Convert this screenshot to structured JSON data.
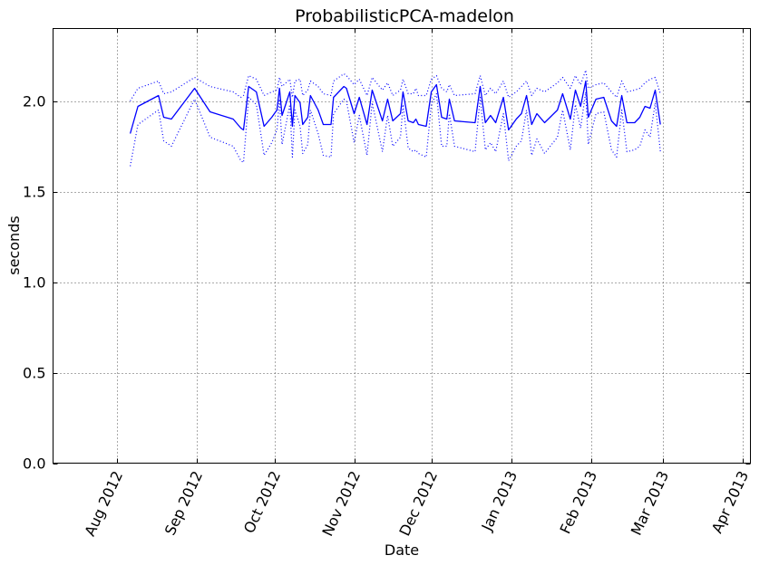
{
  "chart_data": {
    "type": "line",
    "title": "ProbabilisticPCA-madelon",
    "xlabel": "Date",
    "ylabel": "seconds",
    "ylim": [
      0.0,
      2.4
    ],
    "yticks": [
      "0.0",
      "0.5",
      "1.0",
      "1.5",
      "2.0"
    ],
    "xlim": [
      "2012-07-07",
      "2013-04-04"
    ],
    "xticks": [
      "Aug 2012",
      "Sep 2012",
      "Oct 2012",
      "Nov 2012",
      "Dec 2012",
      "Jan 2013",
      "Feb 2013",
      "Mar 2013",
      "Apr 2013"
    ],
    "xtick_dates": [
      "2012-08-01",
      "2012-09-01",
      "2012-10-01",
      "2012-11-01",
      "2012-12-01",
      "2013-01-01",
      "2013-02-01",
      "2013-03-01",
      "2013-04-01"
    ],
    "grid": true,
    "legend": "none",
    "series": [
      {
        "style": "solid",
        "color": "#0000ff",
        "points": [
          [
            "2012-08-06",
            1.82
          ],
          [
            "2012-08-09",
            1.97
          ],
          [
            "2012-08-17",
            2.03
          ],
          [
            "2012-08-19",
            1.91
          ],
          [
            "2012-08-22",
            1.9
          ],
          [
            "2012-08-31",
            2.07
          ],
          [
            "2012-09-06",
            1.94
          ],
          [
            "2012-09-15",
            1.9
          ],
          [
            "2012-09-18",
            1.85
          ],
          [
            "2012-09-19",
            1.84
          ],
          [
            "2012-09-21",
            2.08
          ],
          [
            "2012-09-24",
            2.05
          ],
          [
            "2012-09-27",
            1.86
          ],
          [
            "2012-09-30",
            1.91
          ],
          [
            "2012-10-02",
            1.95
          ],
          [
            "2012-10-03",
            2.07
          ],
          [
            "2012-10-04",
            1.92
          ],
          [
            "2012-10-07",
            2.05
          ],
          [
            "2012-10-08",
            1.86
          ],
          [
            "2012-10-09",
            2.03
          ],
          [
            "2012-10-11",
            1.99
          ],
          [
            "2012-10-12",
            1.87
          ],
          [
            "2012-10-14",
            1.91
          ],
          [
            "2012-10-15",
            2.03
          ],
          [
            "2012-10-18",
            1.95
          ],
          [
            "2012-10-20",
            1.87
          ],
          [
            "2012-10-23",
            1.87
          ],
          [
            "2012-10-24",
            2.02
          ],
          [
            "2012-10-28",
            2.08
          ],
          [
            "2012-10-29",
            2.07
          ],
          [
            "2012-11-01",
            1.93
          ],
          [
            "2012-11-03",
            2.02
          ],
          [
            "2012-11-06",
            1.87
          ],
          [
            "2012-11-08",
            2.06
          ],
          [
            "2012-11-12",
            1.89
          ],
          [
            "2012-11-14",
            2.01
          ],
          [
            "2012-11-16",
            1.89
          ],
          [
            "2012-11-19",
            1.93
          ],
          [
            "2012-11-20",
            2.05
          ],
          [
            "2012-11-22",
            1.89
          ],
          [
            "2012-11-24",
            1.88
          ],
          [
            "2012-11-25",
            1.9
          ],
          [
            "2012-11-26",
            1.87
          ],
          [
            "2012-11-29",
            1.86
          ],
          [
            "2012-12-01",
            2.05
          ],
          [
            "2012-12-03",
            2.09
          ],
          [
            "2012-12-05",
            1.91
          ],
          [
            "2012-12-07",
            1.9
          ],
          [
            "2012-12-08",
            2.01
          ],
          [
            "2012-12-10",
            1.89
          ],
          [
            "2012-12-18",
            1.88
          ],
          [
            "2012-12-20",
            2.08
          ],
          [
            "2012-12-22",
            1.88
          ],
          [
            "2012-12-24",
            1.92
          ],
          [
            "2012-12-26",
            1.88
          ],
          [
            "2012-12-29",
            2.02
          ],
          [
            "2012-12-31",
            1.84
          ],
          [
            "2013-01-03",
            1.9
          ],
          [
            "2013-01-05",
            1.93
          ],
          [
            "2013-01-07",
            2.03
          ],
          [
            "2013-01-09",
            1.87
          ],
          [
            "2013-01-11",
            1.93
          ],
          [
            "2013-01-14",
            1.88
          ],
          [
            "2013-01-19",
            1.95
          ],
          [
            "2013-01-21",
            2.04
          ],
          [
            "2013-01-24",
            1.9
          ],
          [
            "2013-01-26",
            2.06
          ],
          [
            "2013-01-28",
            1.97
          ],
          [
            "2013-01-30",
            2.11
          ],
          [
            "2013-01-31",
            1.91
          ],
          [
            "2013-02-03",
            2.01
          ],
          [
            "2013-02-06",
            2.02
          ],
          [
            "2013-02-09",
            1.89
          ],
          [
            "2013-02-11",
            1.86
          ],
          [
            "2013-02-13",
            2.03
          ],
          [
            "2013-02-15",
            1.88
          ],
          [
            "2013-02-18",
            1.88
          ],
          [
            "2013-02-20",
            1.91
          ],
          [
            "2013-02-22",
            1.97
          ],
          [
            "2013-02-24",
            1.96
          ],
          [
            "2013-02-26",
            2.06
          ],
          [
            "2013-02-28",
            1.87
          ]
        ]
      },
      {
        "style": "dotted",
        "color": "#0000ff",
        "points": [
          [
            "2012-08-06",
            2.0
          ],
          [
            "2012-08-09",
            2.07
          ],
          [
            "2012-08-17",
            2.11
          ],
          [
            "2012-08-19",
            2.04
          ],
          [
            "2012-08-22",
            2.05
          ],
          [
            "2012-08-31",
            2.13
          ],
          [
            "2012-09-06",
            2.08
          ],
          [
            "2012-09-15",
            2.05
          ],
          [
            "2012-09-18",
            2.02
          ],
          [
            "2012-09-19",
            2.03
          ],
          [
            "2012-09-21",
            2.14
          ],
          [
            "2012-09-24",
            2.12
          ],
          [
            "2012-09-27",
            2.03
          ],
          [
            "2012-09-30",
            2.05
          ],
          [
            "2012-10-02",
            2.06
          ],
          [
            "2012-10-03",
            2.13
          ],
          [
            "2012-10-04",
            2.08
          ],
          [
            "2012-10-07",
            2.12
          ],
          [
            "2012-10-08",
            2.02
          ],
          [
            "2012-10-09",
            2.11
          ],
          [
            "2012-10-11",
            2.12
          ],
          [
            "2012-10-12",
            2.03
          ],
          [
            "2012-10-14",
            2.06
          ],
          [
            "2012-10-15",
            2.11
          ],
          [
            "2012-10-18",
            2.08
          ],
          [
            "2012-10-20",
            2.04
          ],
          [
            "2012-10-23",
            2.03
          ],
          [
            "2012-10-24",
            2.11
          ],
          [
            "2012-10-28",
            2.15
          ],
          [
            "2012-10-29",
            2.14
          ],
          [
            "2012-11-01",
            2.09
          ],
          [
            "2012-11-03",
            2.12
          ],
          [
            "2012-11-06",
            2.03
          ],
          [
            "2012-11-08",
            2.13
          ],
          [
            "2012-11-12",
            2.06
          ],
          [
            "2012-11-14",
            2.1
          ],
          [
            "2012-11-16",
            2.03
          ],
          [
            "2012-11-19",
            2.06
          ],
          [
            "2012-11-20",
            2.12
          ],
          [
            "2012-11-22",
            2.04
          ],
          [
            "2012-11-24",
            2.04
          ],
          [
            "2012-11-25",
            2.07
          ],
          [
            "2012-11-26",
            2.03
          ],
          [
            "2012-11-29",
            2.03
          ],
          [
            "2012-12-01",
            2.12
          ],
          [
            "2012-12-03",
            2.14
          ],
          [
            "2012-12-05",
            2.07
          ],
          [
            "2012-12-07",
            2.05
          ],
          [
            "2012-12-08",
            2.09
          ],
          [
            "2012-12-10",
            2.03
          ],
          [
            "2012-12-18",
            2.04
          ],
          [
            "2012-12-20",
            2.14
          ],
          [
            "2012-12-22",
            2.03
          ],
          [
            "2012-12-24",
            2.07
          ],
          [
            "2012-12-26",
            2.04
          ],
          [
            "2012-12-29",
            2.11
          ],
          [
            "2012-12-31",
            2.02
          ],
          [
            "2013-01-03",
            2.05
          ],
          [
            "2013-01-05",
            2.08
          ],
          [
            "2013-01-07",
            2.11
          ],
          [
            "2013-01-09",
            2.03
          ],
          [
            "2013-01-11",
            2.07
          ],
          [
            "2013-01-14",
            2.05
          ],
          [
            "2013-01-19",
            2.1
          ],
          [
            "2013-01-21",
            2.13
          ],
          [
            "2013-01-24",
            2.07
          ],
          [
            "2013-01-26",
            2.14
          ],
          [
            "2013-01-28",
            2.09
          ],
          [
            "2013-01-30",
            2.17
          ],
          [
            "2013-01-31",
            2.07
          ],
          [
            "2013-02-03",
            2.09
          ],
          [
            "2013-02-06",
            2.1
          ],
          [
            "2013-02-09",
            2.05
          ],
          [
            "2013-02-11",
            2.02
          ],
          [
            "2013-02-13",
            2.11
          ],
          [
            "2013-02-15",
            2.05
          ],
          [
            "2013-02-18",
            2.06
          ],
          [
            "2013-02-20",
            2.07
          ],
          [
            "2013-02-22",
            2.1
          ],
          [
            "2013-02-24",
            2.12
          ],
          [
            "2013-02-26",
            2.13
          ],
          [
            "2013-02-28",
            2.04
          ]
        ]
      },
      {
        "style": "dotted",
        "color": "#0000ff",
        "points": [
          [
            "2012-08-06",
            1.64
          ],
          [
            "2012-08-09",
            1.87
          ],
          [
            "2012-08-17",
            1.95
          ],
          [
            "2012-08-19",
            1.78
          ],
          [
            "2012-08-22",
            1.75
          ],
          [
            "2012-08-31",
            2.01
          ],
          [
            "2012-09-06",
            1.8
          ],
          [
            "2012-09-15",
            1.75
          ],
          [
            "2012-09-18",
            1.67
          ],
          [
            "2012-09-19",
            1.66
          ],
          [
            "2012-09-21",
            2.02
          ],
          [
            "2012-09-24",
            1.98
          ],
          [
            "2012-09-27",
            1.7
          ],
          [
            "2012-09-30",
            1.77
          ],
          [
            "2012-10-02",
            1.84
          ],
          [
            "2012-10-03",
            2.01
          ],
          [
            "2012-10-04",
            1.76
          ],
          [
            "2012-10-07",
            1.98
          ],
          [
            "2012-10-08",
            1.69
          ],
          [
            "2012-10-09",
            1.95
          ],
          [
            "2012-10-11",
            1.86
          ],
          [
            "2012-10-12",
            1.71
          ],
          [
            "2012-10-14",
            1.76
          ],
          [
            "2012-10-15",
            1.95
          ],
          [
            "2012-10-18",
            1.82
          ],
          [
            "2012-10-20",
            1.7
          ],
          [
            "2012-10-23",
            1.69
          ],
          [
            "2012-10-24",
            1.93
          ],
          [
            "2012-10-28",
            2.01
          ],
          [
            "2012-10-29",
            2.0
          ],
          [
            "2012-11-01",
            1.77
          ],
          [
            "2012-11-03",
            1.92
          ],
          [
            "2012-11-06",
            1.7
          ],
          [
            "2012-11-08",
            1.99
          ],
          [
            "2012-11-12",
            1.72
          ],
          [
            "2012-11-14",
            1.92
          ],
          [
            "2012-11-16",
            1.75
          ],
          [
            "2012-11-19",
            1.8
          ],
          [
            "2012-11-20",
            1.98
          ],
          [
            "2012-11-22",
            1.74
          ],
          [
            "2012-11-24",
            1.72
          ],
          [
            "2012-11-25",
            1.73
          ],
          [
            "2012-11-26",
            1.71
          ],
          [
            "2012-11-29",
            1.69
          ],
          [
            "2012-12-01",
            1.98
          ],
          [
            "2012-12-03",
            2.04
          ],
          [
            "2012-12-05",
            1.75
          ],
          [
            "2012-12-07",
            1.75
          ],
          [
            "2012-12-08",
            1.93
          ],
          [
            "2012-12-10",
            1.75
          ],
          [
            "2012-12-18",
            1.72
          ],
          [
            "2012-12-20",
            2.02
          ],
          [
            "2012-12-22",
            1.73
          ],
          [
            "2012-12-24",
            1.77
          ],
          [
            "2012-12-26",
            1.72
          ],
          [
            "2012-12-29",
            1.93
          ],
          [
            "2012-12-31",
            1.67
          ],
          [
            "2013-01-03",
            1.75
          ],
          [
            "2013-01-05",
            1.78
          ],
          [
            "2013-01-07",
            1.95
          ],
          [
            "2013-01-09",
            1.7
          ],
          [
            "2013-01-11",
            1.79
          ],
          [
            "2013-01-14",
            1.71
          ],
          [
            "2013-01-19",
            1.8
          ],
          [
            "2013-01-21",
            1.95
          ],
          [
            "2013-01-24",
            1.73
          ],
          [
            "2013-01-26",
            1.98
          ],
          [
            "2013-01-28",
            1.85
          ],
          [
            "2013-01-30",
            2.05
          ],
          [
            "2013-01-31",
            1.76
          ],
          [
            "2013-02-03",
            1.93
          ],
          [
            "2013-02-06",
            1.94
          ],
          [
            "2013-02-09",
            1.73
          ],
          [
            "2013-02-11",
            1.69
          ],
          [
            "2013-02-13",
            1.95
          ],
          [
            "2013-02-15",
            1.72
          ],
          [
            "2013-02-18",
            1.73
          ],
          [
            "2013-02-20",
            1.75
          ],
          [
            "2013-02-22",
            1.84
          ],
          [
            "2013-02-24",
            1.8
          ],
          [
            "2013-02-26",
            1.99
          ],
          [
            "2013-02-28",
            1.72
          ]
        ]
      }
    ]
  }
}
